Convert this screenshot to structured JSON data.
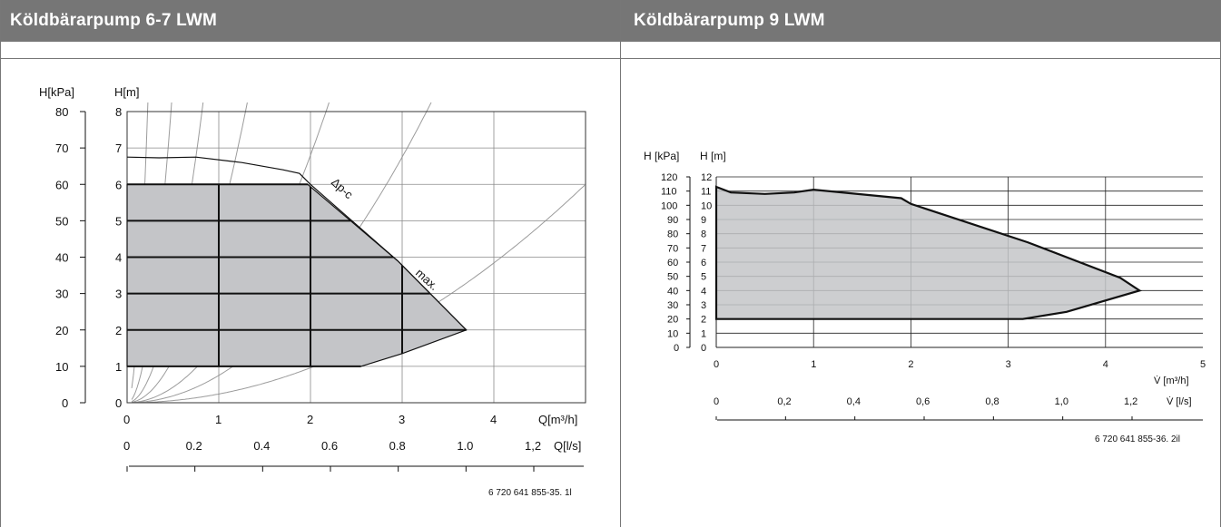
{
  "colors": {
    "header_bg": "#767676",
    "header_text": "#ffffff",
    "region_fill": "#c4c5c8",
    "grid": "#8a8a8a",
    "system_curves": "#9c9c9c"
  },
  "left": {
    "title": "Köldbärarpump 6-7 LWM",
    "ylabel_kpa": "H[kPa]",
    "ylabel_m": "H[m]",
    "xlabel_m3h": "Q[m³/h]",
    "xlabel_ls": "Q[l/s]",
    "code": "6 720 641 855-35. 1l",
    "label_dpc": "Δp-c",
    "label_max": "max."
  },
  "right": {
    "title": "Köldbärarpump 9 LWM",
    "ylabel_kpa": "H [kPa]",
    "ylabel_m": "H [m]",
    "xlabel_m3h": "V̇ [m³/h]",
    "xlabel_ls": "V̇ [l/s]",
    "code": "6 720 641 855-36. 2il"
  },
  "chart_data": [
    {
      "type": "area",
      "title": "Köldbärarpump 6-7 LWM",
      "xlabel": "Q[m³/h]",
      "ylabel": "H[m]",
      "secondary_xlabel": "Q[l/s]",
      "secondary_ylabel": "H[kPa]",
      "xlim": [
        0,
        5
      ],
      "ylim": [
        0,
        8
      ],
      "grid": true,
      "x_ticks": [
        "0",
        "1",
        "2",
        "3",
        "4"
      ],
      "y_ticks": [
        "0",
        "1",
        "2",
        "3",
        "4",
        "5",
        "6",
        "7",
        "8"
      ],
      "kpa_ticks": [
        "0",
        "10",
        "20",
        "30",
        "40",
        "50",
        "60",
        "70",
        "80"
      ],
      "ls_ticks": [
        "0",
        "0.2",
        "0.4",
        "0.6",
        "0.8",
        "1.0",
        "1,2"
      ],
      "ls_tick_values": [
        0,
        0.2,
        0.4,
        0.6,
        0.8,
        1.0,
        1.2
      ],
      "series": [
        {
          "name": "Δp-c",
          "points": [
            [
              0,
              6
            ],
            [
              1.97,
              6
            ],
            [
              2.95,
              3.9
            ],
            [
              3.7,
              2
            ],
            [
              3.0,
              1.35
            ],
            [
              2.55,
              1
            ],
            [
              0,
              1
            ],
            [
              0,
              6
            ]
          ]
        },
        {
          "name": "max.",
          "points": [
            [
              0,
              6.75
            ],
            [
              0.35,
              6.73
            ],
            [
              0.75,
              6.75
            ],
            [
              1.25,
              6.6
            ],
            [
              1.7,
              6.4
            ],
            [
              1.88,
              6.3
            ],
            [
              2.0,
              6.0
            ],
            [
              2.95,
              3.9
            ],
            [
              3.7,
              2
            ]
          ]
        }
      ],
      "system_curves_k": [
        160,
        35,
        12,
        4.8,
        1.7,
        0.75,
        0.24
      ],
      "annotations": [
        "Δp-c",
        "max."
      ]
    },
    {
      "type": "area",
      "title": "Köldbärarpump 9 LWM",
      "xlabel": "V̇ [m³/h]",
      "ylabel": "H [m]",
      "secondary_xlabel": "V̇ [l/s]",
      "secondary_ylabel": "H [kPa]",
      "xlim": [
        0,
        5
      ],
      "ylim": [
        0,
        12
      ],
      "grid": true,
      "x_ticks": [
        "0",
        "1",
        "2",
        "3",
        "4",
        "5"
      ],
      "y_ticks": [
        "0",
        "1",
        "2",
        "3",
        "4",
        "5",
        "6",
        "7",
        "8",
        "9",
        "10",
        "11",
        "12"
      ],
      "kpa_ticks": [
        "0",
        "10",
        "20",
        "30",
        "40",
        "50",
        "60",
        "70",
        "80",
        "90",
        "100",
        "110",
        "120"
      ],
      "ls_ticks": [
        "0",
        "0,2",
        "0,4",
        "0,6",
        "0,8",
        "1,0",
        "1,2"
      ],
      "ls_tick_values": [
        0,
        0.2,
        0.4,
        0.6,
        0.8,
        1.0,
        1.2
      ],
      "series": [
        {
          "name": "",
          "points": [
            [
              0,
              11.3
            ],
            [
              0.15,
              10.9
            ],
            [
              0.5,
              10.8
            ],
            [
              0.8,
              10.9
            ],
            [
              1.0,
              11.1
            ],
            [
              1.9,
              10.5
            ],
            [
              2.0,
              10.1
            ],
            [
              3.2,
              7.4
            ],
            [
              4.15,
              4.9
            ],
            [
              4.35,
              4.0
            ],
            [
              3.6,
              2.5
            ],
            [
              3.15,
              2.0
            ],
            [
              0,
              2.0
            ],
            [
              0,
              11.3
            ]
          ]
        }
      ]
    }
  ]
}
